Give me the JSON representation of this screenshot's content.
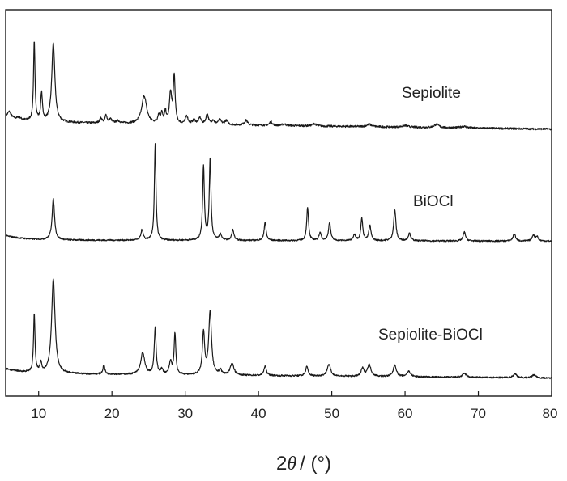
{
  "chart_data": {
    "type": "line",
    "title": "",
    "xlabel": "2θ / (°)",
    "xlabel_parts": {
      "prefix": "2",
      "symbol": "θ",
      "unit": "/ (°)"
    },
    "ylabel": "",
    "xlim": [
      5.5,
      80
    ],
    "x_ticks": [
      10,
      20,
      30,
      40,
      50,
      60,
      70,
      80
    ],
    "x_tick_labels": [
      "10",
      "20",
      "30",
      "40",
      "50",
      "60",
      "70",
      "80"
    ],
    "y_ticks": false,
    "grid": false,
    "legend": "none",
    "series": [
      {
        "name": "Sepiolite",
        "baseline": 14,
        "baseline_slope": -0.12,
        "noise": 1.2,
        "peaks": [
          [
            6,
            8,
            0.3
          ],
          [
            7.3,
            3,
            0.3
          ],
          [
            9.4,
            100,
            0.12
          ],
          [
            10.4,
            35,
            0.14
          ],
          [
            12.0,
            100,
            0.25
          ],
          [
            18.5,
            6,
            0.2
          ],
          [
            19.2,
            10,
            0.15
          ],
          [
            19.8,
            5,
            0.2
          ],
          [
            20.8,
            3,
            0.3
          ],
          [
            24.4,
            35,
            0.4
          ],
          [
            26.4,
            10,
            0.18
          ],
          [
            26.8,
            12,
            0.15
          ],
          [
            27.3,
            14,
            0.15
          ],
          [
            28.0,
            38,
            0.18
          ],
          [
            28.5,
            60,
            0.15
          ],
          [
            30.2,
            10,
            0.2
          ],
          [
            31.2,
            5,
            0.25
          ],
          [
            32.0,
            8,
            0.2
          ],
          [
            33.0,
            13,
            0.2
          ],
          [
            33.8,
            5,
            0.2
          ],
          [
            34.7,
            6,
            0.25
          ],
          [
            35.6,
            5,
            0.25
          ],
          [
            38.3,
            6,
            0.25
          ],
          [
            41.7,
            5,
            0.2
          ],
          [
            43.5,
            2,
            0.3
          ],
          [
            47.6,
            3,
            0.3
          ],
          [
            55.1,
            3,
            0.4
          ],
          [
            60.0,
            2,
            0.5
          ],
          [
            64.3,
            4,
            0.4
          ],
          [
            68.0,
            2,
            0.5
          ]
        ]
      },
      {
        "name": "BiOCl",
        "baseline": 7,
        "baseline_slope": -0.02,
        "noise": 1.0,
        "peaks": [
          [
            12.0,
            55,
            0.2
          ],
          [
            24.1,
            14,
            0.18
          ],
          [
            25.9,
            130,
            0.13
          ],
          [
            32.5,
            100,
            0.14
          ],
          [
            33.4,
            110,
            0.14
          ],
          [
            34.8,
            8,
            0.2
          ],
          [
            36.5,
            14,
            0.18
          ],
          [
            40.9,
            25,
            0.16
          ],
          [
            46.7,
            45,
            0.15
          ],
          [
            48.4,
            10,
            0.2
          ],
          [
            49.7,
            25,
            0.17
          ],
          [
            53.1,
            8,
            0.2
          ],
          [
            54.1,
            30,
            0.16
          ],
          [
            55.2,
            20,
            0.18
          ],
          [
            58.6,
            42,
            0.18
          ],
          [
            60.6,
            10,
            0.2
          ],
          [
            68.1,
            12,
            0.2
          ],
          [
            74.9,
            10,
            0.2
          ],
          [
            77.5,
            8,
            0.2
          ],
          [
            78.0,
            6,
            0.2
          ]
        ]
      },
      {
        "name": "Sepiolite-BiOCl",
        "baseline": 10,
        "baseline_slope": -0.08,
        "noise": 1.0,
        "peaks": [
          [
            9.4,
            75,
            0.12
          ],
          [
            10.3,
            12,
            0.15
          ],
          [
            12.0,
            122,
            0.28
          ],
          [
            18.9,
            12,
            0.15
          ],
          [
            24.2,
            28,
            0.32
          ],
          [
            25.9,
            60,
            0.15
          ],
          [
            26.8,
            6,
            0.2
          ],
          [
            28.0,
            16,
            0.2
          ],
          [
            28.6,
            53,
            0.14
          ],
          [
            32.5,
            55,
            0.18
          ],
          [
            33.4,
            82,
            0.22
          ],
          [
            34.8,
            6,
            0.2
          ],
          [
            36.4,
            15,
            0.3
          ],
          [
            40.9,
            12,
            0.2
          ],
          [
            46.6,
            12,
            0.2
          ],
          [
            49.6,
            15,
            0.28
          ],
          [
            54.2,
            10,
            0.22
          ],
          [
            55.1,
            15,
            0.3
          ],
          [
            58.6,
            15,
            0.25
          ],
          [
            60.5,
            7,
            0.3
          ],
          [
            68.1,
            5,
            0.3
          ],
          [
            75.0,
            5,
            0.3
          ],
          [
            77.6,
            4,
            0.3
          ]
        ]
      }
    ]
  }
}
